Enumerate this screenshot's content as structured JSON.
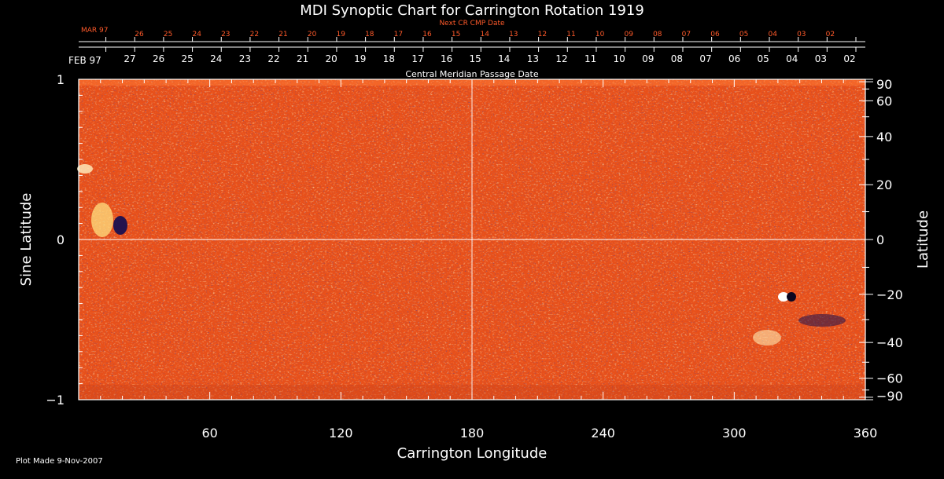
{
  "chart_data": {
    "type": "heatmap",
    "title": "MDI Synoptic Chart for Carrington Rotation 1919",
    "xlabel": "Carrington Longitude",
    "ylabel_left": "Sine Latitude",
    "ylabel_right": "Latitude",
    "xlim": [
      0,
      360
    ],
    "ylim": [
      -1,
      1
    ],
    "x_ticks": [
      "60",
      "120",
      "180",
      "240",
      "300",
      "360"
    ],
    "x_tick_values": [
      60,
      120,
      180,
      240,
      300,
      360
    ],
    "y_left_ticks": [
      {
        "value": 1,
        "label": "1"
      },
      {
        "value": 0,
        "label": "0"
      },
      {
        "value": -1,
        "label": "−1"
      }
    ],
    "y_right_ticks": [
      {
        "lat": 90,
        "label": "90"
      },
      {
        "lat": 60,
        "label": "60"
      },
      {
        "lat": 40,
        "label": "40"
      },
      {
        "lat": 20,
        "label": "20"
      },
      {
        "lat": 0,
        "label": "0"
      },
      {
        "lat": -20,
        "label": "−20"
      },
      {
        "lat": -40,
        "label": "−40"
      },
      {
        "lat": -60,
        "label": "−60"
      },
      {
        "lat": -90,
        "label": "−90"
      }
    ],
    "top_axis_label": "Central Meridian Passage Date",
    "top_axis_month": "FEB 97",
    "top_axis_dates": [
      "27",
      "26",
      "25",
      "24",
      "23",
      "22",
      "21",
      "20",
      "19",
      "18",
      "17",
      "16",
      "15",
      "14",
      "13",
      "12",
      "11",
      "10",
      "09",
      "08",
      "07",
      "06",
      "05",
      "04",
      "03",
      "02"
    ],
    "next_cr_label": "Next CR CMP Date",
    "next_cr_month": "MAR 97",
    "next_cr_dates": [
      "26",
      "25",
      "24",
      "23",
      "22",
      "21",
      "20",
      "19",
      "18",
      "17",
      "16",
      "15",
      "14",
      "13",
      "12",
      "11",
      "10",
      "09",
      "08",
      "07",
      "06",
      "05",
      "04",
      "03",
      "02"
    ],
    "grid_lines": {
      "x": [
        180
      ],
      "y": [
        0
      ]
    },
    "colors": {
      "field_base": "#e8501a",
      "positive": "#ffe8a0",
      "negative": "#1a1050",
      "next_cr_text": "#ff5a2a"
    }
  },
  "footer": {
    "plot_made": "Plot Made  9-Nov-2007"
  }
}
